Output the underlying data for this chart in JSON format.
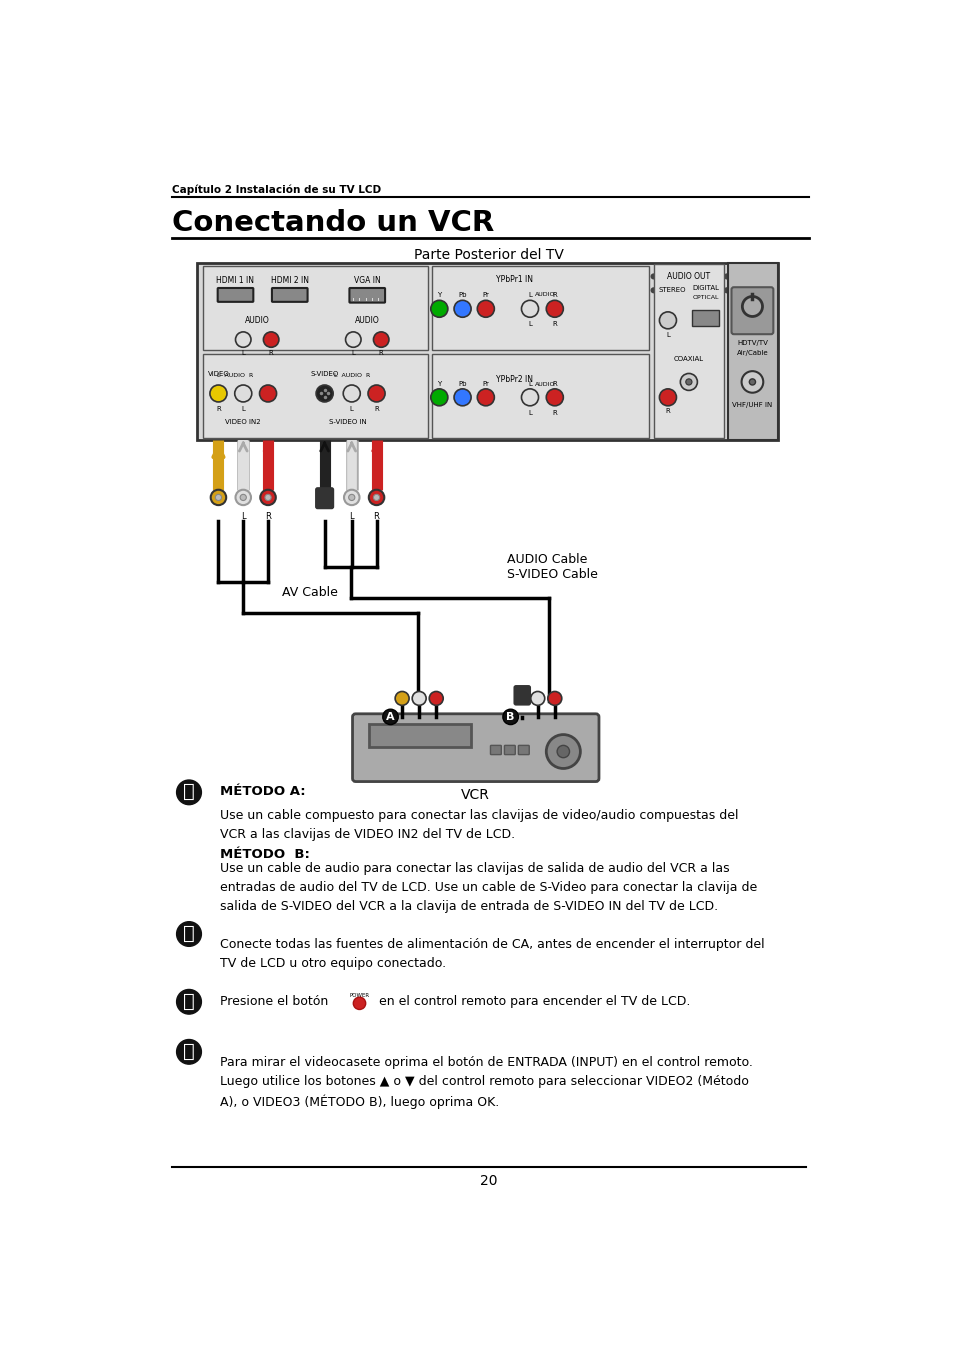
{
  "page_title": "Conectando un VCR",
  "chapter_header": "Capítulo 2 Instalación de su TV LCD",
  "diagram_title": "Parte Posterior del TV",
  "cable_labels": [
    "AUDIO Cable",
    "S-VIDEO Cable",
    "AV Cable"
  ],
  "vcr_label": "VCR",
  "step1_bold1": "MÉTODO A:",
  "step1_text1": "Use un cable compuesto para conectar las clavijas de video/audio compuestas del\nVCR a las clavijas de VIDEO IN2 del TV de LCD.",
  "step1_bold2": "MÉTODO  B:",
  "step1_text2": "Use un cable de audio para conectar las clavijas de salida de audio del VCR a las\nentradas de audio del TV de LCD. Use un cable de S-Video para conectar la clavija de\nsalida de S-VIDEO del VCR a la clavija de entrada de S-VIDEO IN del TV de LCD.",
  "step2_text": "Conecte todas las fuentes de alimentación de CA, antes de encender el interruptor del\nTV de LCD u otro equipo conectado.",
  "step3_text": "Presione el botón",
  "step3_text2": "  en el control remoto para encender el TV de LCD.",
  "step4_text": "Para mirar el videocasete oprima el botón de ENTRADA (INPUT) en el control remoto.\nLuego utilice los botones ▲ o ▼ del control remoto para seleccionar VIDEO2 (Método\nA), o VIDEO3 (MÉTODO B), luego oprima OK.",
  "page_number": "20",
  "bg_color": "#ffffff",
  "text_color": "#000000"
}
